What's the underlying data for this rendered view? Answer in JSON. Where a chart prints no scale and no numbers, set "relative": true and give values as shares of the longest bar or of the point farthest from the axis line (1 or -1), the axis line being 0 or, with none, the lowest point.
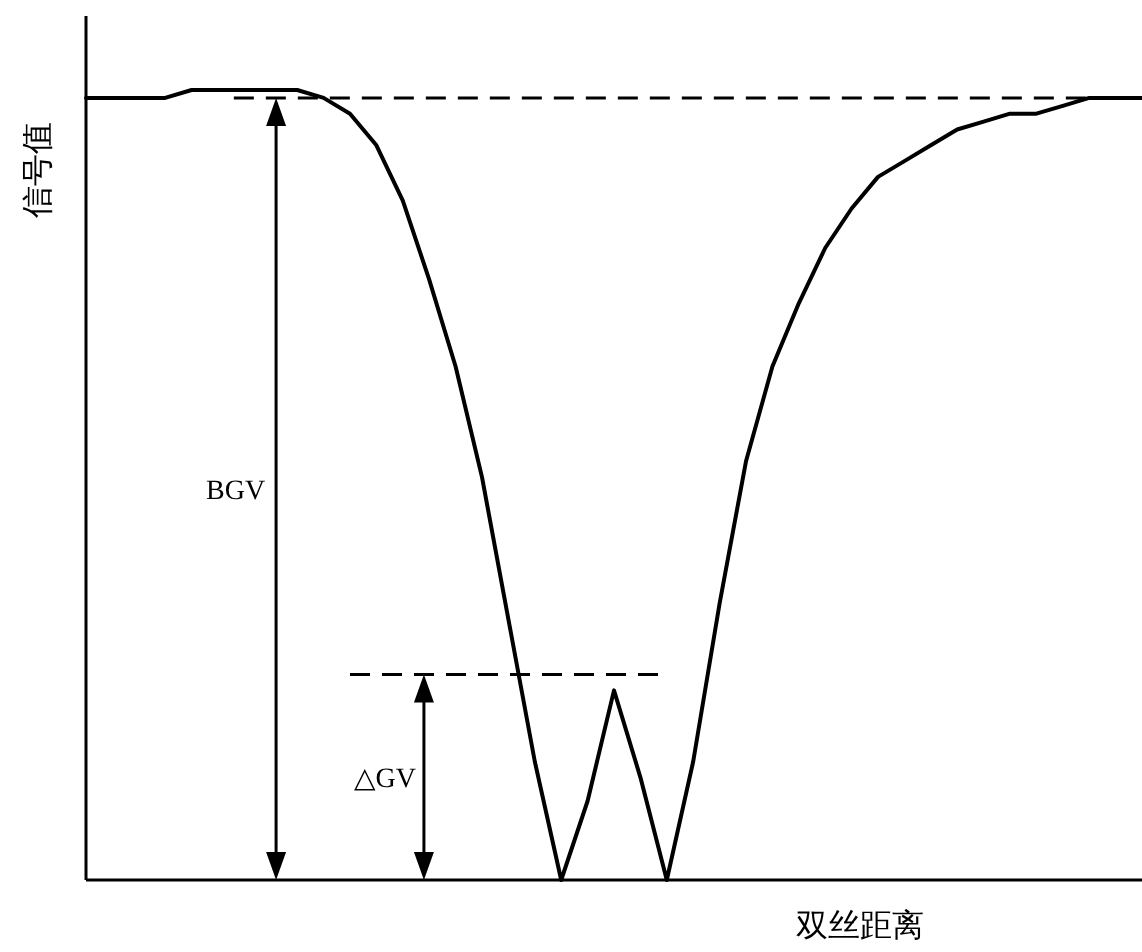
{
  "chart_data": {
    "type": "line",
    "relative": true,
    "xlabel": "双丝距离",
    "ylabel": "信号值",
    "categories": [
      null,
      null,
      null,
      null,
      null,
      null,
      null,
      null,
      null,
      null,
      null,
      null,
      null,
      null,
      null,
      null,
      null,
      null,
      null,
      null,
      null,
      null,
      null,
      null,
      null,
      null,
      null,
      null,
      null,
      null,
      null,
      null,
      null,
      null,
      null,
      null,
      null,
      null,
      null,
      null,
      null
    ],
    "series": [
      {
        "color": "#000000",
        "values": [
          0.99,
          0.99,
          0.99,
          0.99,
          1.0,
          1.0,
          1.0,
          1.0,
          1.0,
          0.99,
          0.97,
          0.93,
          0.86,
          0.76,
          0.65,
          0.51,
          0.33,
          0.15,
          0,
          0.1,
          0.24,
          0.13,
          0,
          0.15,
          0.35,
          0.53,
          0.65,
          0.73,
          0.8,
          0.85,
          0.89,
          0.91,
          0.93,
          0.95,
          0.96,
          0.97,
          0.97,
          0.98,
          0.99,
          0.99,
          0.99
        ]
      }
    ],
    "ref_lines": [
      {
        "axis": "y",
        "value": 0.99,
        "line_style": "dashed",
        "color": "#000000"
      },
      {
        "axis": "y",
        "value": 0.26,
        "line_style": "dashed",
        "color": "#000000"
      }
    ],
    "annotations": [
      "BGV",
      "△GV"
    ]
  }
}
